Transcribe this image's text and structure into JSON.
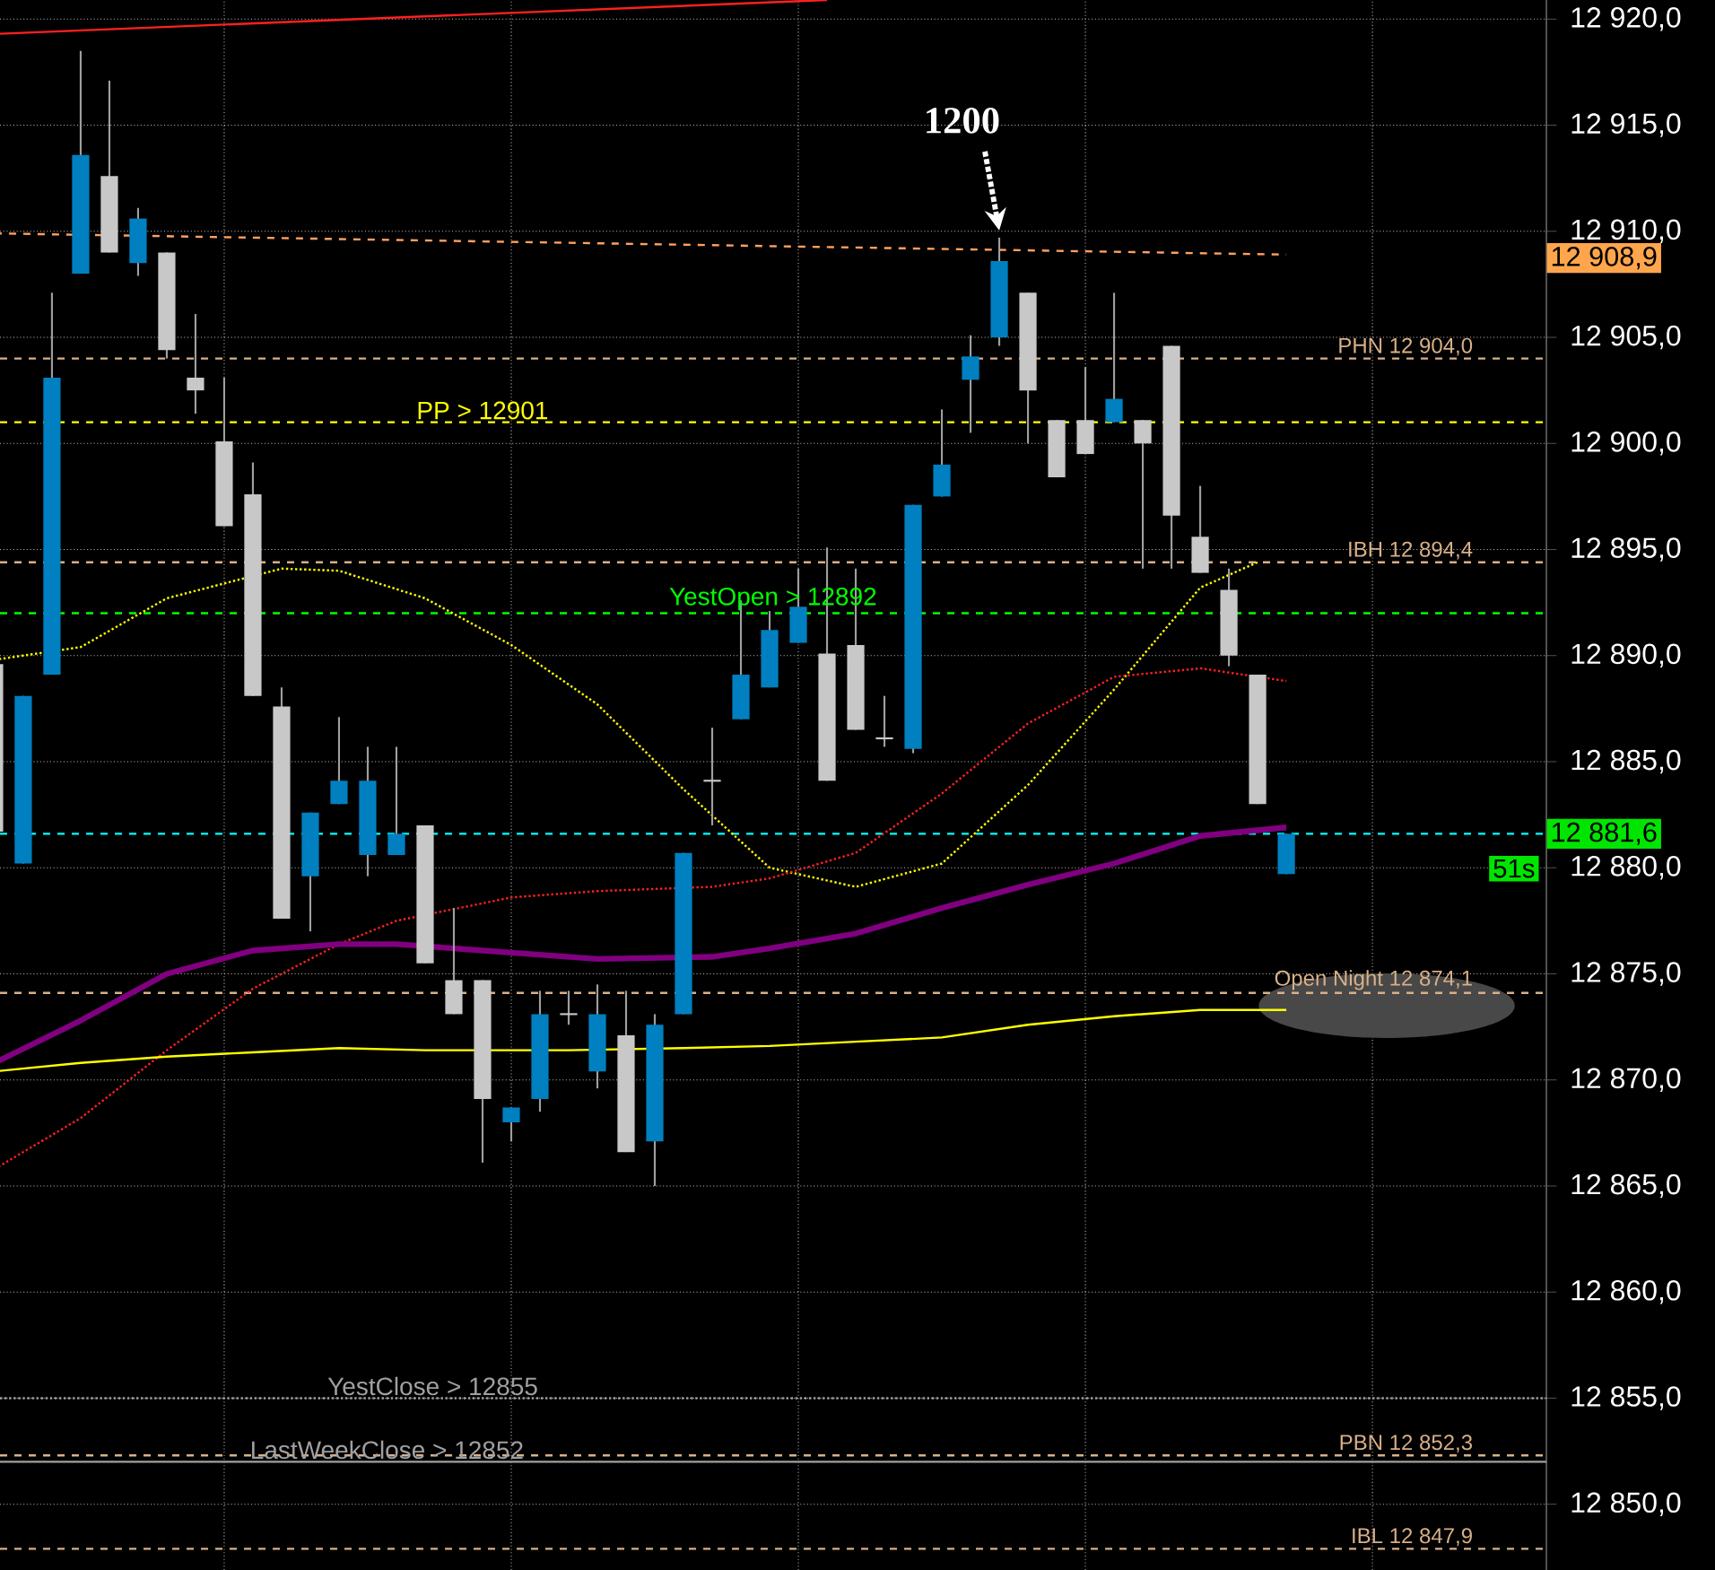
{
  "chart_data": {
    "type": "candlestick",
    "categories": [
      null,
      null,
      null,
      null,
      null,
      null,
      null,
      null,
      null,
      null,
      null,
      null,
      null,
      null,
      null,
      null,
      null,
      null,
      null,
      null,
      null,
      null,
      null,
      null,
      null,
      null,
      null,
      null,
      null,
      null,
      null,
      null,
      null,
      null,
      null,
      null,
      null,
      null,
      null,
      null,
      null,
      null,
      null,
      null,
      null,
      null,
      null,
      null,
      null,
      null,
      null,
      null,
      null,
      null
    ],
    "ohlc": [
      [
        12889.6,
        12889.6,
        12881.7,
        12881.7
      ],
      [
        12880.2,
        12888.1,
        12880.2,
        12888.1
      ],
      [
        12889.1,
        12907.1,
        12889.1,
        12903.1
      ],
      [
        12908.0,
        12918.5,
        12908.0,
        12913.6
      ],
      [
        12912.6,
        12917.1,
        12909.0,
        12909.0
      ],
      [
        12908.5,
        12911.1,
        12907.9,
        12910.6
      ],
      [
        12909.0,
        12909.0,
        12904.0,
        12904.4
      ],
      [
        12903.1,
        12906.1,
        12901.4,
        12902.5
      ],
      [
        12900.1,
        12903.1,
        12896.1,
        12896.1
      ],
      [
        12897.6,
        12899.1,
        12888.1,
        12888.1
      ],
      [
        12887.6,
        12888.5,
        12877.6,
        12877.6
      ],
      [
        12879.6,
        12882.6,
        12877.0,
        12882.6
      ],
      [
        12883.0,
        12887.1,
        12883.0,
        12884.1
      ],
      [
        12880.6,
        12885.7,
        12879.6,
        12884.1
      ],
      [
        12880.6,
        12885.7,
        12880.6,
        12881.6
      ],
      [
        12882.0,
        12882.0,
        12875.5,
        12875.5
      ],
      [
        12874.7,
        12878.1,
        12873.1,
        12873.1
      ],
      [
        12874.7,
        12874.7,
        12866.1,
        12869.1
      ],
      [
        12868.0,
        12868.7,
        12867.1,
        12868.7
      ],
      [
        12869.1,
        12874.2,
        12868.5,
        12873.1
      ],
      [
        12873.1,
        12874.2,
        12872.6,
        12873.1
      ],
      [
        12870.4,
        12874.5,
        12869.6,
        12873.1
      ],
      [
        12872.1,
        12874.2,
        12866.6,
        12866.6
      ],
      [
        12867.1,
        12873.1,
        12865.0,
        12872.6
      ],
      [
        12873.1,
        12880.7,
        12873.1,
        12880.7
      ],
      [
        12884.1,
        12886.6,
        12882.0,
        12884.1
      ],
      [
        12887.0,
        12892.6,
        12887.0,
        12889.1
      ],
      [
        12888.5,
        12892.1,
        12888.5,
        12891.2
      ],
      [
        12890.6,
        12894.1,
        12890.6,
        12892.3
      ],
      [
        12890.1,
        12895.1,
        12884.1,
        12884.1
      ],
      [
        12890.5,
        12894.1,
        12886.5,
        12886.5
      ],
      [
        12886.1,
        12888.1,
        12885.7,
        12886.1
      ],
      [
        12885.6,
        12897.1,
        12885.4,
        12897.1
      ],
      [
        12897.5,
        12901.6,
        12897.5,
        12899.0
      ],
      [
        12903.0,
        12905.1,
        12900.5,
        12904.1
      ],
      [
        12905.0,
        12909.7,
        12904.6,
        12908.6
      ],
      [
        12907.1,
        12907.1,
        12900.0,
        12902.5
      ],
      [
        12901.1,
        12901.1,
        12898.4,
        12898.4
      ],
      [
        12901.1,
        12903.6,
        12899.5,
        12899.5
      ],
      [
        12901.0,
        12907.1,
        12901.0,
        12902.1
      ],
      [
        12901.1,
        12901.1,
        12894.1,
        12900.0
      ],
      [
        12904.6,
        12904.6,
        12894.1,
        12896.6
      ],
      [
        12895.6,
        12898.0,
        12893.9,
        12893.9
      ],
      [
        12893.1,
        12894.1,
        12889.5,
        12890.0
      ],
      [
        12889.1,
        12889.1,
        12883.0,
        12883.0
      ],
      [
        12879.7,
        12881.6,
        12879.7,
        12881.6
      ],
      null,
      null,
      null,
      null,
      null,
      null,
      null,
      null
    ],
    "colors": [
      "#c8c8c8",
      "#0080c0",
      "#0080c0",
      "#0080c0",
      "#c8c8c8",
      "#0080c0",
      "#c8c8c8",
      "#c8c8c8",
      "#c8c8c8",
      "#c8c8c8",
      "#c8c8c8",
      "#0080c0",
      "#0080c0",
      "#0080c0",
      "#0080c0",
      "#c8c8c8",
      "#c8c8c8",
      "#c8c8c8",
      "#0080c0",
      "#0080c0",
      "#c8c8c8",
      "#0080c0",
      "#c8c8c8",
      "#0080c0",
      "#0080c0",
      "#c8c8c8",
      "#0080c0",
      "#0080c0",
      "#0080c0",
      "#c8c8c8",
      "#c8c8c8",
      "#c8c8c8",
      "#0080c0",
      "#0080c0",
      "#0080c0",
      "#0080c0",
      "#c8c8c8",
      "#c8c8c8",
      "#c8c8c8",
      "#0080c0",
      "#c8c8c8",
      "#c8c8c8",
      "#c8c8c8",
      "#c8c8c8",
      "#c8c8c8",
      "#0080c0",
      null,
      null,
      null,
      null,
      null,
      null,
      null,
      null
    ],
    "series": [
      {
        "type": "line",
        "color": "#ff2020",
        "line_style": "solid",
        "values": [
          12919.3,
          null,
          null,
          null,
          null,
          null,
          null,
          null,
          null,
          null,
          null,
          null,
          null,
          null,
          null,
          null,
          null,
          null,
          null,
          null,
          null,
          null,
          null,
          null,
          null,
          null,
          null,
          null,
          null,
          12920.9,
          null,
          null,
          null,
          null,
          null,
          null,
          null,
          null,
          null,
          null,
          null,
          null,
          null,
          null,
          null,
          null,
          null,
          null,
          null,
          null,
          null,
          null,
          null,
          null
        ]
      },
      {
        "type": "line",
        "color": "#ffa060",
        "line_style": "dashed",
        "values": [
          12909.9,
          null,
          null,
          null,
          null,
          null,
          null,
          null,
          null,
          null,
          null,
          null,
          null,
          null,
          null,
          null,
          null,
          null,
          null,
          null,
          null,
          null,
          null,
          null,
          null,
          null,
          null,
          null,
          null,
          null,
          null,
          null,
          null,
          null,
          null,
          null,
          null,
          null,
          null,
          null,
          null,
          null,
          null,
          null,
          null,
          12908.9,
          null,
          null,
          null,
          null,
          null,
          null,
          null,
          null
        ]
      },
      {
        "type": "line",
        "color": "#ffff00",
        "line_style": "dotted",
        "values": [
          12889.8,
          null,
          null,
          12890.4,
          null,
          null,
          12892.7,
          null,
          null,
          null,
          12894.1,
          null,
          12894.0,
          null,
          null,
          12892.7,
          null,
          null,
          12890.5,
          null,
          null,
          12887.7,
          null,
          null,
          12883.7,
          null,
          null,
          12880.0,
          null,
          null,
          12879.1,
          null,
          null,
          12880.2,
          null,
          null,
          12883.9,
          null,
          null,
          12888.4,
          null,
          null,
          12893.2,
          null,
          12894.4,
          null,
          null,
          null,
          null,
          null,
          null,
          null,
          null,
          null
        ]
      },
      {
        "type": "line",
        "color": "#ff2020",
        "line_style": "dotted",
        "values": [
          12865.8,
          null,
          null,
          12868.2,
          null,
          null,
          12871.4,
          null,
          null,
          12874.3,
          null,
          null,
          12876.4,
          null,
          12877.5,
          null,
          null,
          null,
          12878.6,
          null,
          null,
          12878.9,
          null,
          null,
          null,
          12879.1,
          null,
          12879.5,
          null,
          null,
          12880.7,
          null,
          null,
          12883.5,
          null,
          null,
          12886.8,
          null,
          null,
          12889.0,
          null,
          null,
          12889.4,
          null,
          null,
          12888.8,
          null,
          null,
          null,
          null,
          null,
          null,
          null,
          null
        ]
      },
      {
        "type": "line",
        "color": "#ffff00",
        "line_style": "solid",
        "values": [
          12870.4,
          null,
          null,
          12870.8,
          null,
          null,
          12871.1,
          null,
          null,
          12871.3,
          null,
          null,
          12871.5,
          null,
          null,
          12871.4,
          null,
          null,
          12871.4,
          null,
          12871.4,
          null,
          null,
          null,
          12871.5,
          null,
          null,
          12871.6,
          null,
          null,
          12871.8,
          null,
          null,
          12872.0,
          null,
          null,
          12872.6,
          null,
          null,
          12873.0,
          null,
          null,
          12873.3,
          null,
          null,
          12873.3,
          null,
          null,
          null,
          null,
          null,
          null,
          null,
          null
        ]
      },
      {
        "type": "line",
        "color": "#800080",
        "line_style": "solid",
        "values": [
          12870.8,
          null,
          null,
          12872.8,
          null,
          null,
          12875.0,
          null,
          null,
          12876.1,
          null,
          null,
          12876.4,
          null,
          12876.4,
          null,
          null,
          null,
          12876.0,
          null,
          null,
          12875.7,
          null,
          null,
          null,
          12875.8,
          null,
          12876.2,
          null,
          null,
          12876.9,
          null,
          null,
          12878.1,
          null,
          null,
          12879.2,
          null,
          null,
          12880.2,
          null,
          null,
          12881.5,
          null,
          null,
          12881.9,
          null,
          null,
          null,
          null,
          null,
          null,
          null,
          null
        ]
      }
    ],
    "ylim": [
      12846.9,
      12920.9
    ],
    "yticks": [
      {
        "value": 12850,
        "label": "12 850,0"
      },
      {
        "value": 12855,
        "label": "12 855,0"
      },
      {
        "value": 12860,
        "label": "12 860,0"
      },
      {
        "value": 12865,
        "label": "12 865,0"
      },
      {
        "value": 12870,
        "label": "12 870,0"
      },
      {
        "value": 12875,
        "label": "12 875,0"
      },
      {
        "value": 12880,
        "label": "12 880,0"
      },
      {
        "value": 12885,
        "label": "12 885,0"
      },
      {
        "value": 12890,
        "label": "12 890,0"
      },
      {
        "value": 12895,
        "label": "12 895,0"
      },
      {
        "value": 12900,
        "label": "12 900,0"
      },
      {
        "value": 12905,
        "label": "12 905,0"
      },
      {
        "value": 12910,
        "label": "12 910,0"
      },
      {
        "value": 12915,
        "label": "12 915,0"
      },
      {
        "value": 12920,
        "label": "12 920,0"
      }
    ],
    "grid": true,
    "tick_labels": "y",
    "ref_lines": [
      {
        "axis": "y",
        "value": 12901,
        "label": "PP > 12901",
        "color": "#ffff00",
        "line_style": "dashed"
      },
      {
        "axis": "y",
        "value": 12892,
        "label": "YestOpen > 12892",
        "color": "#00ff00",
        "line_style": "dashed"
      },
      {
        "axis": "y",
        "value": 12904.0,
        "label": "PHN 12 904,0",
        "color": "#d8b088",
        "line_style": "dashed"
      },
      {
        "axis": "y",
        "value": 12894.4,
        "label": "IBH 12 894,4",
        "color": "#d8b088",
        "line_style": "dashed"
      },
      {
        "axis": "y",
        "value": 12874.1,
        "label": "Open Night 12 874,1",
        "color": "#d8b088",
        "line_style": "dashed"
      },
      {
        "axis": "y",
        "value": 12852.3,
        "label": "PBN 12 852,3",
        "color": "#d8b088",
        "line_style": "dashed"
      },
      {
        "axis": "y",
        "value": 12847.9,
        "label": "IBL 12 847,9",
        "color": "#d8b088",
        "line_style": "dashed"
      },
      {
        "axis": "y",
        "value": 12855,
        "label": "YestClose > 12855",
        "color": "#a0a0a0",
        "line_style": "dotted"
      },
      {
        "axis": "y",
        "value": 12852,
        "label": "LastWeekClose > 12852",
        "color": "#a0a0a0",
        "line_style": "solid"
      },
      {
        "axis": "y",
        "value": 12881.6,
        "label": "12 881,6",
        "color": "#00ffff",
        "line_style": "dashed"
      }
    ],
    "annotations": [
      "1200",
      "12 908,9",
      "51s"
    ]
  }
}
